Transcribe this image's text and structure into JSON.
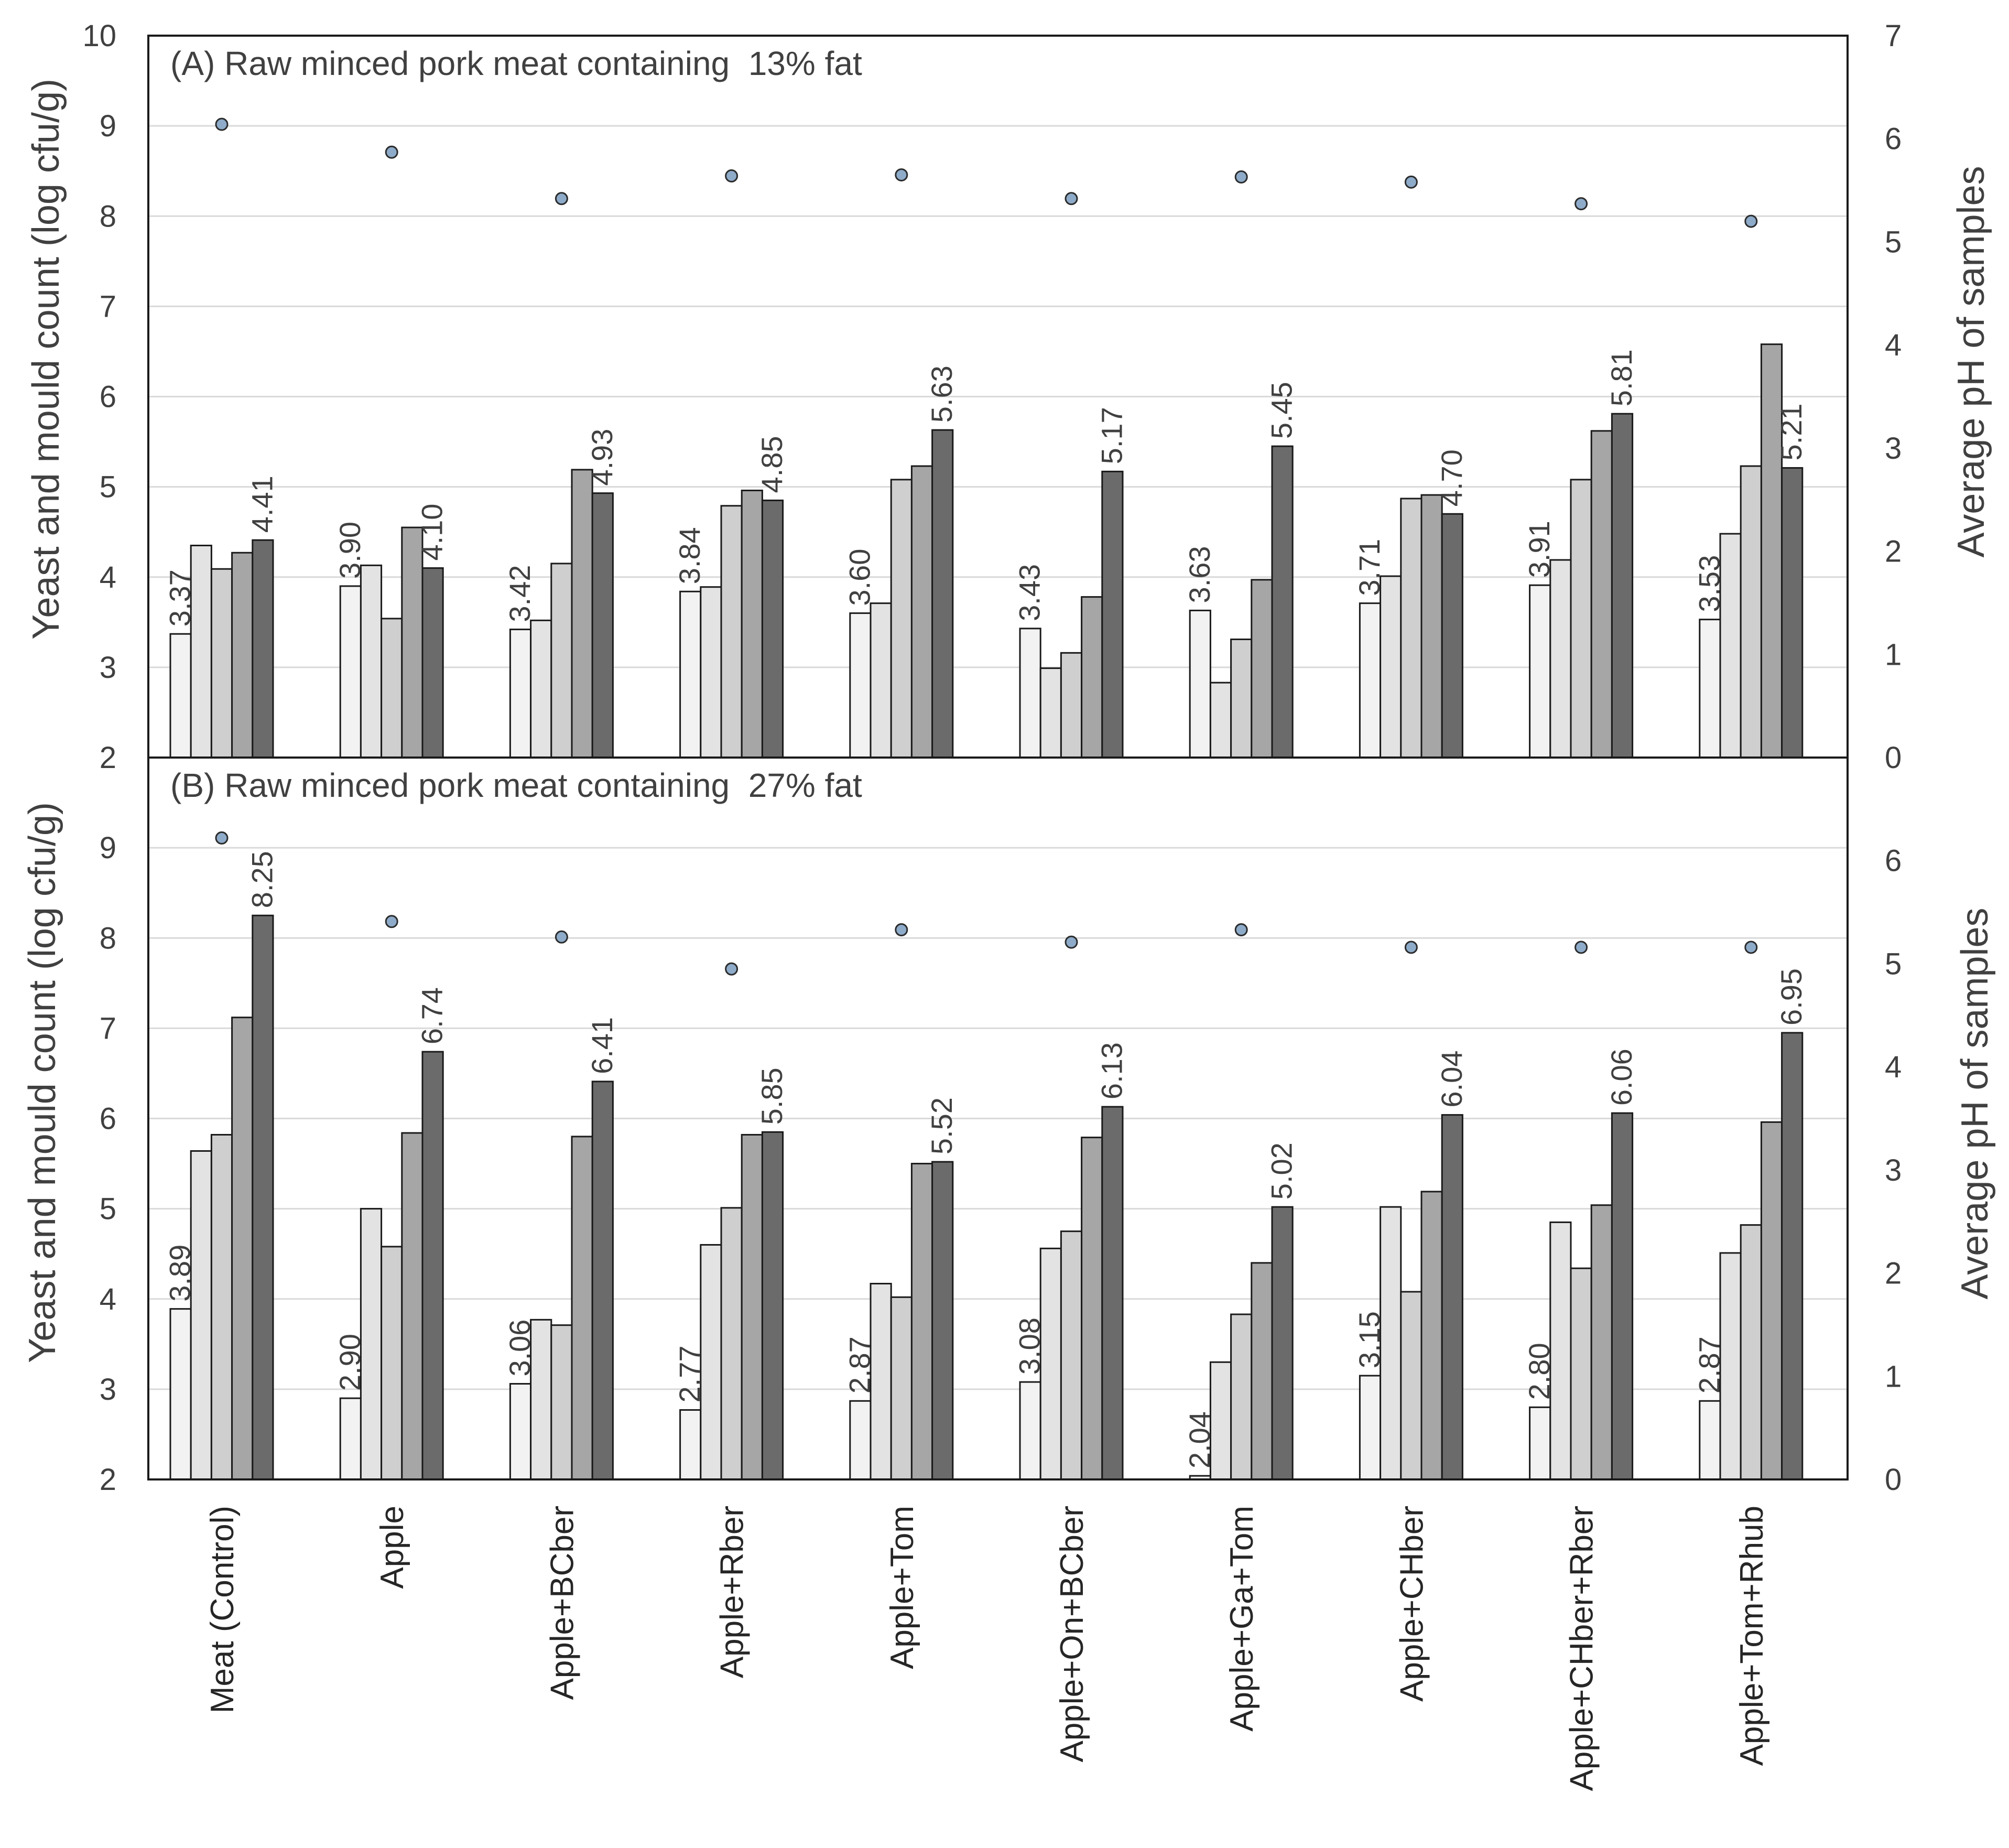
{
  "chart_data": {
    "type": "bar",
    "description_series": [
      "bar series 1",
      "bar series 2",
      "bar series 3",
      "bar series 4",
      "bar series 5",
      "average pH (dots)"
    ],
    "categories": [
      "Meat (Control)",
      "Apple",
      "Apple+BCber",
      "Apple+Rber",
      "Apple+Tom",
      "Apple+On+BCber",
      "Apple+Ga+Tom",
      "Apple+CHber",
      "Apple+CHber+Rber",
      "Apple+Tom+Rhub"
    ],
    "bar_colors": [
      "#f2f2f2",
      "#e3e3e3",
      "#cfcfcf",
      "#a6a6a6",
      "#6b6b6b"
    ],
    "ph_color": "#8eabc9",
    "ylabel": "Yeast and mould count (log cfu/g)",
    "y2label": "Average pH of samples",
    "ylim": [
      2,
      10
    ],
    "y2lim": [
      0,
      7
    ],
    "panels": [
      {
        "title": "(A) Raw minced pork meat containing  13% fat",
        "ylim": [
          2,
          10
        ],
        "y_ticks": [
          "2",
          "3",
          "4",
          "5",
          "6",
          "7",
          "8",
          "9",
          "10"
        ],
        "y2lim": [
          0,
          7
        ],
        "y2_ticks": [
          "0",
          "1",
          "2",
          "3",
          "4",
          "5",
          "6",
          "7"
        ],
        "series_values": [
          [
            3.37,
            4.35,
            4.09,
            4.27,
            4.41
          ],
          [
            3.9,
            4.13,
            3.54,
            4.55,
            4.1
          ],
          [
            3.42,
            3.52,
            4.15,
            5.19,
            4.93
          ],
          [
            3.84,
            3.89,
            4.79,
            4.96,
            4.85
          ],
          [
            3.6,
            3.71,
            5.08,
            5.23,
            5.63
          ],
          [
            3.43,
            2.99,
            3.16,
            3.78,
            5.17
          ],
          [
            3.63,
            2.83,
            3.31,
            3.97,
            5.45
          ],
          [
            3.71,
            4.01,
            4.87,
            4.91,
            4.7
          ],
          [
            3.91,
            4.19,
            5.08,
            5.62,
            5.81
          ],
          [
            3.53,
            4.48,
            5.23,
            6.58,
            5.21
          ]
        ],
        "first_labels": [
          "3.37",
          "3.90",
          "3.42",
          "3.84",
          "3.60",
          "3.43",
          "3.63",
          "3.71",
          "3.91",
          "3.53"
        ],
        "last_labels": [
          "4.41",
          "4.10",
          "4.93",
          "4.85",
          "5.63",
          "5.17",
          "5.45",
          "4.70",
          "5.81",
          "5.21"
        ],
        "ph": [
          6.14,
          5.87,
          5.42,
          5.64,
          5.65,
          5.42,
          5.63,
          5.58,
          5.37,
          5.2
        ]
      },
      {
        "title": "(B) Raw minced pork meat containing  27% fat",
        "ylim": [
          2,
          10
        ],
        "y_ticks": [
          "2",
          "3",
          "4",
          "5",
          "6",
          "7",
          "8",
          "9"
        ],
        "y2lim": [
          0,
          7
        ],
        "y2_ticks": [
          "0",
          "1",
          "2",
          "3",
          "4",
          "5",
          "6"
        ],
        "series_values": [
          [
            3.89,
            5.64,
            5.82,
            7.12,
            8.25
          ],
          [
            2.9,
            5.0,
            4.58,
            5.84,
            6.74
          ],
          [
            3.06,
            3.77,
            3.71,
            5.8,
            6.41
          ],
          [
            2.77,
            4.6,
            5.01,
            5.82,
            5.85
          ],
          [
            2.87,
            4.17,
            4.02,
            5.5,
            5.52
          ],
          [
            3.08,
            4.56,
            4.75,
            5.79,
            6.13
          ],
          [
            2.04,
            3.3,
            3.83,
            4.4,
            5.02
          ],
          [
            3.15,
            5.02,
            4.08,
            5.19,
            6.04
          ],
          [
            2.8,
            4.85,
            4.34,
            5.04,
            6.06
          ],
          [
            2.87,
            4.51,
            4.82,
            5.96,
            6.95
          ]
        ],
        "first_labels": [
          "3.89",
          "2.90",
          "3.06",
          "2.77",
          "2.87",
          "3.08",
          "2.04",
          "3.15",
          "2.80",
          "2.87"
        ],
        "last_labels": [
          "8.25",
          "6.74",
          "6.41",
          "5.85",
          "5.52",
          "6.13",
          "5.02",
          "6.04",
          "6.06",
          "6.95"
        ],
        "ph": [
          6.22,
          5.41,
          5.26,
          4.95,
          5.33,
          5.21,
          5.33,
          5.16,
          5.16,
          5.16
        ]
      }
    ]
  }
}
